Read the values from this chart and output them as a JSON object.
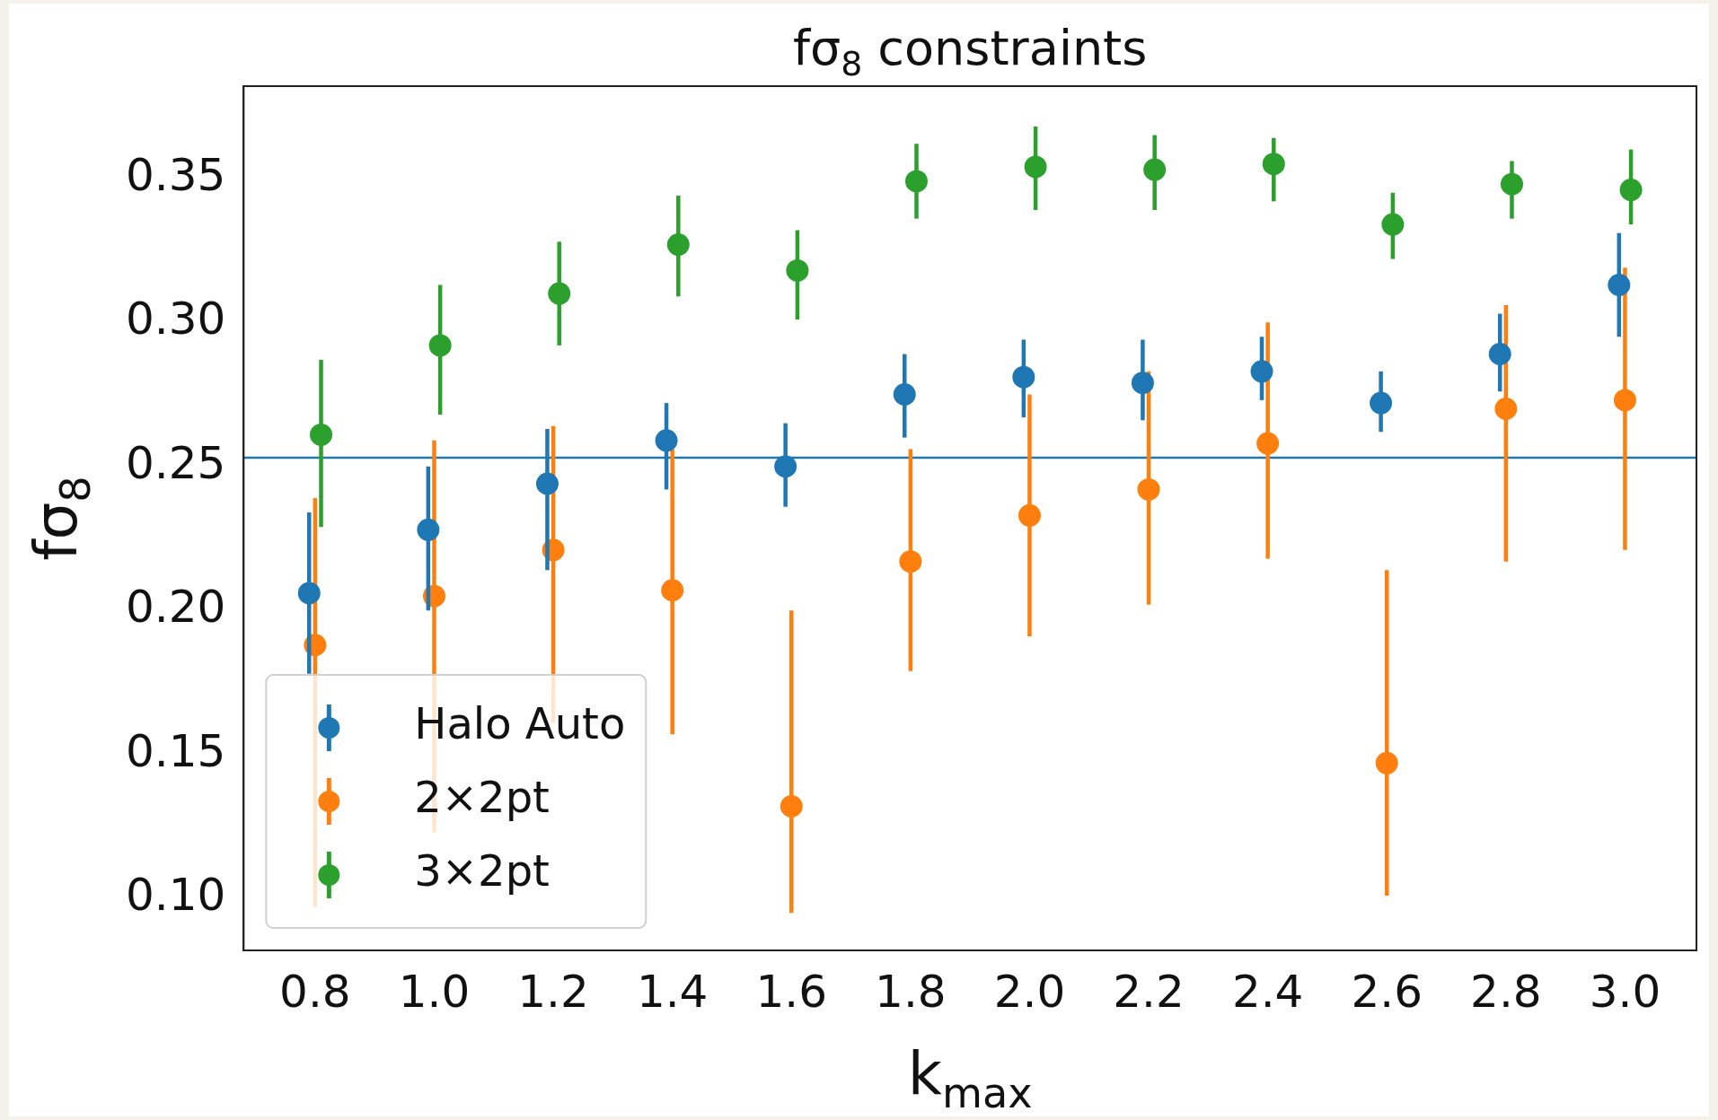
{
  "chart_data": {
    "type": "scatter",
    "title": "fσ$_{8}$ constraints",
    "xlabel": "k$_{max}$",
    "ylabel": "fσ$_{8}$",
    "xlim": [
      0.68,
      3.12
    ],
    "xticks": [
      0.8,
      {
        "value": 1,
        "label": "1.0"
      },
      1.2,
      1.4,
      1.6,
      1.8,
      {
        "value": 2,
        "label": "2.0"
      },
      2.2,
      2.4,
      2.6,
      2.8,
      {
        "value": 3,
        "label": "3.0"
      }
    ],
    "ylim": [
      0.082,
      0.382
    ],
    "yticks": [
      {
        "value": 0.1,
        "label": "0.10"
      },
      0.15,
      {
        "value": 0.2,
        "label": "0.20"
      },
      0.25,
      {
        "value": 0.3,
        "label": "0.30"
      },
      0.35
    ],
    "grid": false,
    "legend": "bottom left",
    "marker": "circle",
    "ref_lines": [
      {
        "axis": "y",
        "value": 0.253,
        "color": "#1f77b4"
      }
    ],
    "series": [
      {
        "name": "Halo Auto",
        "color": "#1f77b4",
        "x": [
          0.79,
          0.99,
          1.19,
          1.39,
          1.59,
          1.79,
          1.99,
          2.19,
          2.39,
          2.59,
          2.79,
          2.99
        ],
        "values": [
          0.206,
          0.228,
          0.244,
          0.259,
          0.25,
          0.275,
          0.281,
          0.279,
          0.283,
          0.272,
          0.289,
          0.313
        ],
        "errors": [
          [
            0.178,
            0.234
          ],
          [
            0.2,
            0.25
          ],
          [
            0.214,
            0.263
          ],
          [
            0.242,
            0.272
          ],
          [
            0.236,
            0.265
          ],
          [
            0.26,
            0.289
          ],
          [
            0.267,
            0.294
          ],
          [
            0.266,
            0.294
          ],
          [
            0.273,
            0.295
          ],
          [
            0.262,
            0.283
          ],
          [
            0.276,
            0.303
          ],
          [
            0.295,
            0.331
          ]
        ]
      },
      {
        "name": "2×2pt",
        "color": "#ff7f0e",
        "x": [
          0.8,
          1,
          1.2,
          1.4,
          1.6,
          1.8,
          2,
          2.2,
          2.4,
          2.6,
          2.8,
          3
        ],
        "values": [
          0.188,
          0.205,
          0.221,
          0.207,
          0.132,
          0.217,
          0.233,
          0.242,
          0.258,
          0.147,
          0.27,
          0.273
        ],
        "errors": [
          [
            0.097,
            0.239
          ],
          [
            0.123,
            0.259
          ],
          [
            0.161,
            0.264
          ],
          [
            0.157,
            0.256
          ],
          [
            0.095,
            0.2
          ],
          [
            0.179,
            0.256
          ],
          [
            0.191,
            0.275
          ],
          [
            0.202,
            0.283
          ],
          [
            0.218,
            0.3
          ],
          [
            0.101,
            0.214
          ],
          [
            0.217,
            0.306
          ],
          [
            0.221,
            0.319
          ]
        ]
      },
      {
        "name": "3×2pt",
        "color": "#2ca02c",
        "x": [
          0.81,
          1.01,
          1.21,
          1.41,
          1.61,
          1.81,
          2.01,
          2.21,
          2.41,
          2.61,
          2.81,
          3.01
        ],
        "values": [
          0.261,
          0.292,
          0.31,
          0.327,
          0.318,
          0.349,
          0.354,
          0.353,
          0.355,
          0.334,
          0.348,
          0.346
        ],
        "errors": [
          [
            0.229,
            0.287
          ],
          [
            0.268,
            0.313
          ],
          [
            0.292,
            0.328
          ],
          [
            0.309,
            0.344
          ],
          [
            0.301,
            0.332
          ],
          [
            0.336,
            0.362
          ],
          [
            0.339,
            0.368
          ],
          [
            0.339,
            0.365
          ],
          [
            0.342,
            0.364
          ],
          [
            0.322,
            0.345
          ],
          [
            0.336,
            0.356
          ],
          [
            0.334,
            0.36
          ]
        ]
      }
    ]
  }
}
